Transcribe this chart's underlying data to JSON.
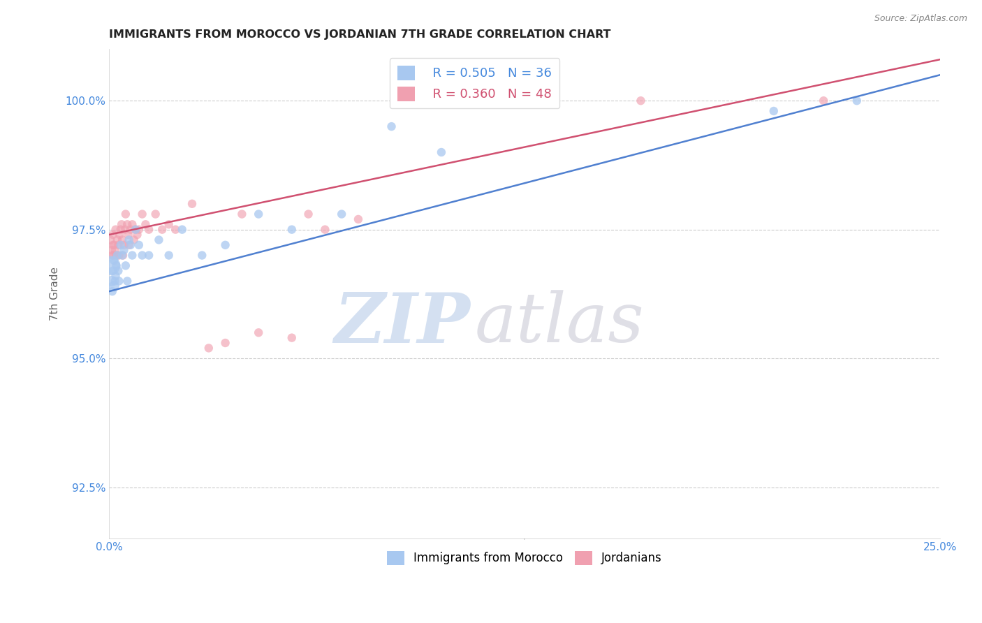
{
  "title": "IMMIGRANTS FROM MOROCCO VS JORDANIAN 7TH GRADE CORRELATION CHART",
  "source": "Source: ZipAtlas.com",
  "ylabel_label": "7th Grade",
  "x_min": 0.0,
  "x_max": 25.0,
  "y_min": 91.5,
  "y_max": 101.0,
  "yticks": [
    92.5,
    95.0,
    97.5,
    100.0
  ],
  "ytick_labels": [
    "92.5%",
    "95.0%",
    "97.5%",
    "100.0%"
  ],
  "xticks": [
    0.0,
    5.0,
    10.0,
    15.0,
    20.0,
    25.0
  ],
  "xtick_labels": [
    "0.0%",
    "",
    "",
    "",
    "",
    "25.0%"
  ],
  "legend_r1": "R = 0.505",
  "legend_n1": "N = 36",
  "legend_r2": "R = 0.360",
  "legend_n2": "N = 48",
  "color_morocco": "#a8c8f0",
  "color_jordanian": "#f0a0b0",
  "color_morocco_line": "#5080d0",
  "color_jordanian_line": "#d05070",
  "color_axis_text": "#4488dd",
  "morocco_x": [
    0.05,
    0.08,
    0.1,
    0.12,
    0.15,
    0.15,
    0.18,
    0.2,
    0.22,
    0.25,
    0.28,
    0.3,
    0.35,
    0.4,
    0.45,
    0.5,
    0.55,
    0.6,
    0.65,
    0.7,
    0.8,
    0.9,
    1.0,
    1.2,
    1.5,
    1.8,
    2.2,
    2.8,
    3.5,
    4.5,
    5.5,
    7.0,
    8.5,
    10.0,
    20.0,
    22.5
  ],
  "morocco_y": [
    96.8,
    96.5,
    96.3,
    96.7,
    96.4,
    96.9,
    96.5,
    96.6,
    96.8,
    97.0,
    96.7,
    96.5,
    97.2,
    97.0,
    97.1,
    96.8,
    96.5,
    97.3,
    97.2,
    97.0,
    97.5,
    97.2,
    97.0,
    97.0,
    97.3,
    97.0,
    97.5,
    97.0,
    97.2,
    97.8,
    97.5,
    97.8,
    99.5,
    99.0,
    99.8,
    100.0
  ],
  "morocco_sizes": [
    400,
    120,
    80,
    80,
    120,
    80,
    80,
    80,
    80,
    80,
    80,
    80,
    80,
    80,
    80,
    80,
    80,
    80,
    80,
    80,
    80,
    80,
    80,
    80,
    80,
    80,
    80,
    80,
    80,
    80,
    80,
    80,
    80,
    80,
    80,
    80
  ],
  "jordanian_x": [
    0.05,
    0.08,
    0.1,
    0.12,
    0.12,
    0.14,
    0.15,
    0.18,
    0.2,
    0.22,
    0.25,
    0.28,
    0.3,
    0.32,
    0.35,
    0.38,
    0.4,
    0.42,
    0.45,
    0.48,
    0.5,
    0.55,
    0.58,
    0.6,
    0.65,
    0.7,
    0.75,
    0.8,
    0.85,
    0.9,
    1.0,
    1.1,
    1.2,
    1.4,
    1.6,
    1.8,
    2.0,
    2.5,
    3.0,
    3.5,
    4.0,
    4.5,
    5.5,
    6.0,
    6.5,
    7.5,
    16.0,
    21.5
  ],
  "jordanian_y": [
    97.3,
    97.1,
    97.0,
    97.2,
    97.4,
    97.0,
    97.2,
    97.1,
    97.5,
    97.0,
    97.3,
    97.2,
    97.0,
    97.4,
    97.5,
    97.6,
    97.3,
    97.0,
    97.2,
    97.5,
    97.8,
    97.6,
    97.4,
    97.2,
    97.5,
    97.6,
    97.3,
    97.5,
    97.4,
    97.5,
    97.8,
    97.6,
    97.5,
    97.8,
    97.5,
    97.6,
    97.5,
    98.0,
    95.2,
    95.3,
    97.8,
    95.5,
    95.4,
    97.8,
    97.5,
    97.7,
    100.0,
    100.0
  ],
  "jordanian_sizes": [
    80,
    80,
    80,
    80,
    80,
    80,
    80,
    80,
    80,
    80,
    80,
    80,
    80,
    80,
    80,
    80,
    80,
    80,
    80,
    80,
    80,
    80,
    80,
    80,
    80,
    80,
    80,
    80,
    80,
    80,
    80,
    80,
    80,
    80,
    80,
    80,
    80,
    80,
    80,
    80,
    80,
    80,
    80,
    80,
    80,
    80,
    80,
    80
  ],
  "line_morocco_x0": 0.0,
  "line_morocco_y0": 96.3,
  "line_morocco_x1": 25.0,
  "line_morocco_y1": 100.5,
  "line_jordan_x0": 0.0,
  "line_jordan_y0": 97.4,
  "line_jordan_x1": 25.0,
  "line_jordan_y1": 100.8
}
